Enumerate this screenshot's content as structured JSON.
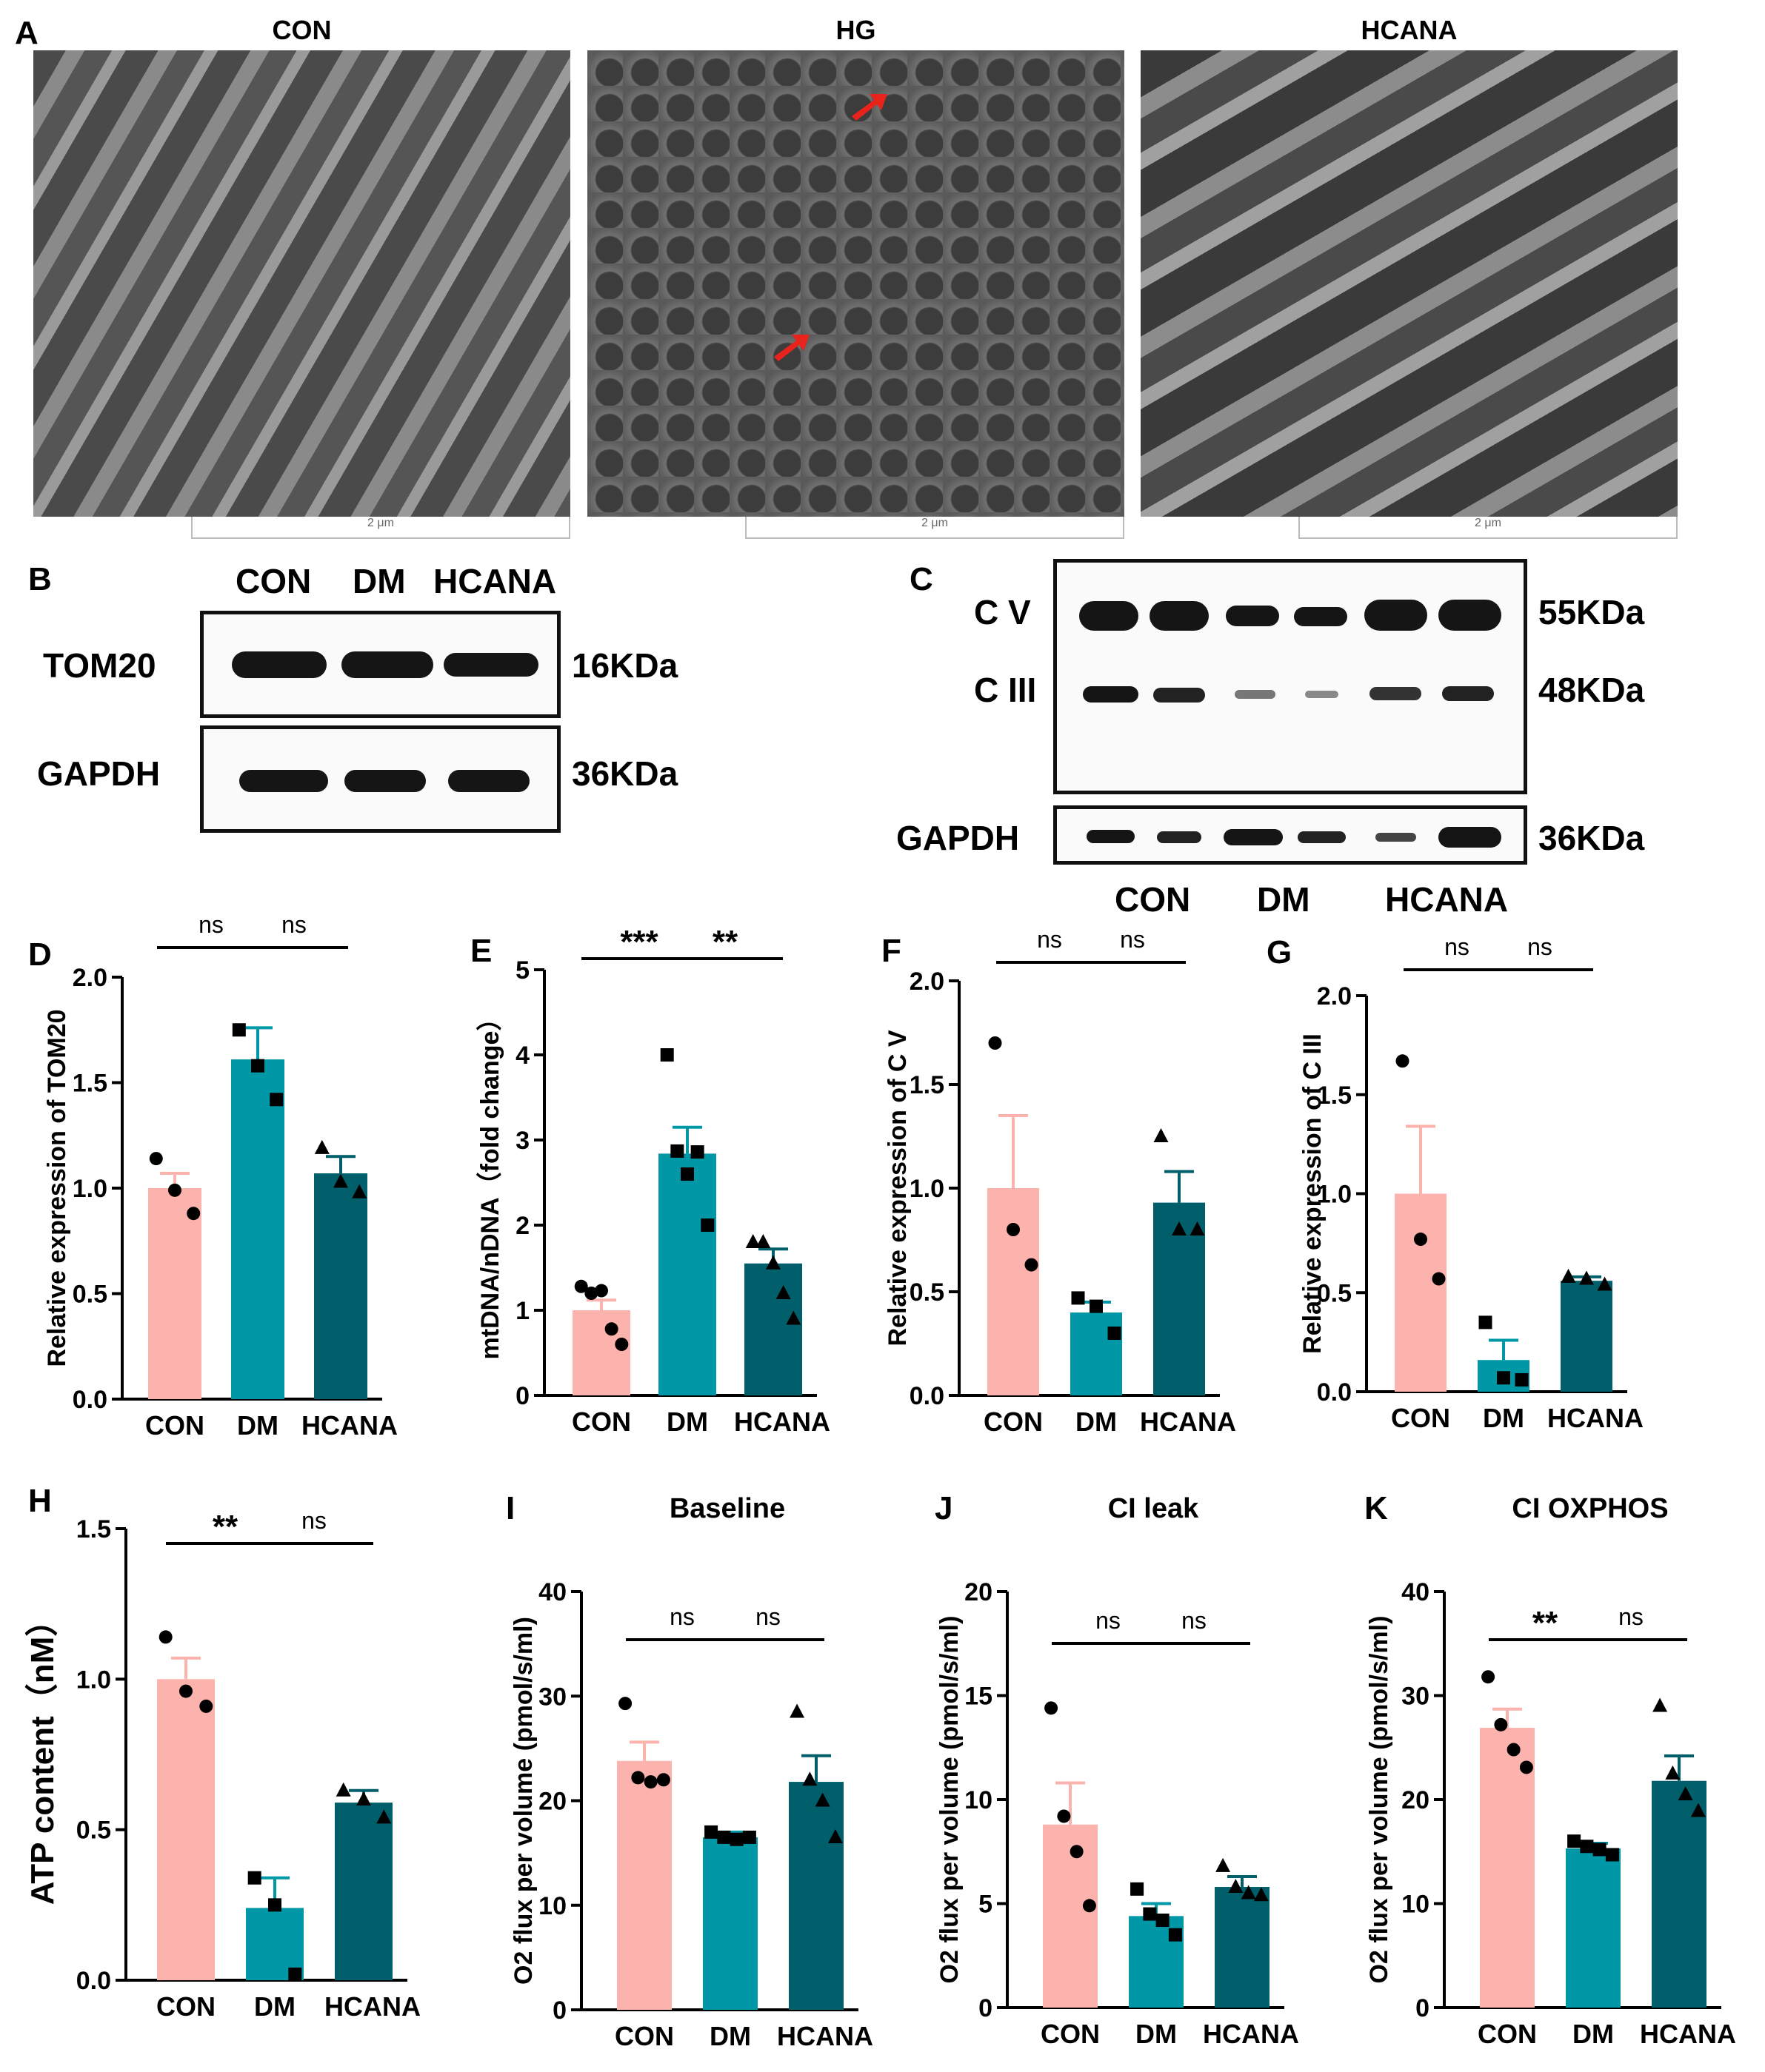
{
  "panel_a": {
    "letter": "A",
    "titles": [
      "CON",
      "HG",
      "HCANA"
    ],
    "scalebar_label": "2 μm"
  },
  "panel_b": {
    "letter": "B",
    "columns": [
      "CON",
      "DM",
      "HCANA"
    ],
    "rows": [
      {
        "label": "TOM20",
        "size": "16KDa"
      },
      {
        "label": "GAPDH",
        "size": "36KDa"
      }
    ]
  },
  "panel_c": {
    "letter": "C",
    "rows": [
      {
        "label": "C V",
        "size": "55KDa"
      },
      {
        "label": "C III",
        "size": "48KDa"
      },
      {
        "label": "GAPDH",
        "size": "36KDa"
      }
    ],
    "groups": [
      "CON",
      "DM",
      "HCANA"
    ]
  },
  "colors": {
    "CON": "#fdb3ad",
    "DM": "#0097a7",
    "HCANA": "#005f6b"
  },
  "chart_data": [
    {
      "id": "D",
      "type": "bar",
      "ylabel": "Relative expression of TOM20",
      "categories": [
        "CON",
        "DM",
        "HCANA"
      ],
      "values": [
        1.0,
        1.61,
        1.07
      ],
      "errors": [
        0.07,
        0.15,
        0.08
      ],
      "points": [
        [
          1.14,
          0.99,
          0.88
        ],
        [
          1.75,
          1.58,
          1.42
        ],
        [
          1.19,
          1.03,
          0.98
        ]
      ],
      "ylim": [
        0,
        2.0
      ],
      "yticks": [
        0.0,
        0.5,
        1.0,
        1.5,
        2.0
      ],
      "tick_decimals": 1,
      "significance": [
        {
          "from": 0,
          "to": 1,
          "label": "ns"
        },
        {
          "from": 1,
          "to": 2,
          "label": "ns"
        }
      ]
    },
    {
      "id": "E",
      "type": "bar",
      "ylabel": "mtDNA/nDNA（fold change）",
      "categories": [
        "CON",
        "DM",
        "HCANA"
      ],
      "values": [
        1.0,
        2.84,
        1.55
      ],
      "errors": [
        0.12,
        0.31,
        0.17
      ],
      "points": [
        [
          1.28,
          1.2,
          1.23,
          0.78,
          0.6
        ],
        [
          4.0,
          2.87,
          2.6,
          2.86,
          2.0
        ],
        [
          1.8,
          1.8,
          1.55,
          1.2,
          0.9
        ]
      ],
      "ylim": [
        0,
        5
      ],
      "yticks": [
        0,
        1,
        2,
        3,
        4,
        5
      ],
      "tick_decimals": 0,
      "significance": [
        {
          "from": 0,
          "to": 1,
          "label": "***"
        },
        {
          "from": 1,
          "to": 2,
          "label": "**"
        }
      ]
    },
    {
      "id": "F",
      "type": "bar",
      "ylabel": "Relative expression of C V",
      "categories": [
        "CON",
        "DM",
        "HCANA"
      ],
      "values": [
        1.0,
        0.4,
        0.93
      ],
      "errors": [
        0.35,
        0.05,
        0.15
      ],
      "points": [
        [
          1.7,
          0.8,
          0.63
        ],
        [
          0.47,
          0.43,
          0.3
        ],
        [
          1.25,
          0.8,
          0.8
        ]
      ],
      "ylim": [
        0,
        2.0
      ],
      "yticks": [
        0.0,
        0.5,
        1.0,
        1.5,
        2.0
      ],
      "tick_decimals": 1,
      "significance": [
        {
          "from": 0,
          "to": 1,
          "label": "ns"
        },
        {
          "from": 1,
          "to": 2,
          "label": "ns"
        }
      ]
    },
    {
      "id": "G",
      "type": "bar",
      "ylabel": "Relative expression of C III",
      "categories": [
        "CON",
        "DM",
        "HCANA"
      ],
      "values": [
        1.0,
        0.16,
        0.56
      ],
      "errors": [
        0.34,
        0.1,
        0.02
      ],
      "points": [
        [
          1.67,
          0.77,
          0.57
        ],
        [
          0.35,
          0.07,
          0.06
        ],
        [
          0.58,
          0.57,
          0.54
        ]
      ],
      "ylim": [
        0,
        2.0
      ],
      "yticks": [
        0.0,
        0.5,
        1.0,
        1.5,
        2.0
      ],
      "tick_decimals": 1,
      "significance": [
        {
          "from": 0,
          "to": 1,
          "label": "ns"
        },
        {
          "from": 1,
          "to": 2,
          "label": "ns"
        }
      ]
    },
    {
      "id": "H",
      "type": "bar",
      "ylabel": "ATP content（nM）",
      "categories": [
        "CON",
        "DM",
        "HCANA"
      ],
      "values": [
        1.0,
        0.24,
        0.59
      ],
      "errors": [
        0.07,
        0.1,
        0.04
      ],
      "points": [
        [
          1.14,
          0.96,
          0.91
        ],
        [
          0.34,
          0.25,
          0.02
        ],
        [
          0.63,
          0.6,
          0.54
        ]
      ],
      "ylim": [
        0,
        1.5
      ],
      "yticks": [
        0.0,
        0.5,
        1.0,
        1.5
      ],
      "tick_decimals": 1,
      "significance": [
        {
          "from": 0,
          "to": 1,
          "label": "**"
        },
        {
          "from": 1,
          "to": 2,
          "label": "ns"
        }
      ]
    },
    {
      "id": "I",
      "type": "bar",
      "title": "Baseline",
      "ylabel": "O2 flux per volume (pmol/s/ml)",
      "categories": [
        "CON",
        "DM",
        "HCANA"
      ],
      "values": [
        23.8,
        16.5,
        21.8
      ],
      "errors": [
        1.8,
        0.5,
        2.5
      ],
      "points": [
        [
          29.3,
          22.2,
          21.8,
          22.0
        ],
        [
          17.0,
          16.5,
          16.3,
          16.5
        ],
        [
          28.5,
          22.0,
          20.0,
          16.5
        ]
      ],
      "ylim": [
        0,
        40
      ],
      "yticks": [
        0,
        10,
        20,
        30,
        40
      ],
      "tick_decimals": 0,
      "significance": [
        {
          "from": 0,
          "to": 1,
          "label": "ns"
        },
        {
          "from": 1,
          "to": 2,
          "label": "ns"
        }
      ]
    },
    {
      "id": "J",
      "type": "bar",
      "title": "CI leak",
      "ylabel": "O2 flux per volume (pmol/s/ml)",
      "categories": [
        "CON",
        "DM",
        "HCANA"
      ],
      "values": [
        8.8,
        4.4,
        5.8
      ],
      "errors": [
        2.0,
        0.6,
        0.5
      ],
      "points": [
        [
          14.4,
          9.2,
          7.5,
          4.9
        ],
        [
          5.7,
          4.5,
          4.2,
          3.5
        ],
        [
          6.8,
          5.8,
          5.5,
          5.4
        ]
      ],
      "ylim": [
        0,
        20
      ],
      "yticks": [
        0,
        5,
        10,
        15,
        20
      ],
      "tick_decimals": 0,
      "significance": [
        {
          "from": 0,
          "to": 1,
          "label": "ns"
        },
        {
          "from": 1,
          "to": 2,
          "label": "ns"
        }
      ]
    },
    {
      "id": "K",
      "type": "bar",
      "title": "CI OXPHOS",
      "ylabel": "O2 flux per volume (pmol/s/ml)",
      "categories": [
        "CON",
        "DM",
        "HCANA"
      ],
      "values": [
        26.9,
        15.3,
        21.8
      ],
      "errors": [
        1.8,
        0.5,
        2.4
      ],
      "points": [
        [
          31.8,
          27.2,
          24.8,
          23.1
        ],
        [
          16.0,
          15.5,
          15.2,
          14.7
        ],
        [
          29.0,
          22.5,
          20.5,
          18.9
        ]
      ],
      "ylim": [
        0,
        40
      ],
      "yticks": [
        0,
        10,
        20,
        30,
        40
      ],
      "tick_decimals": 0,
      "significance": [
        {
          "from": 0,
          "to": 1,
          "label": "**"
        },
        {
          "from": 1,
          "to": 2,
          "label": "ns"
        }
      ]
    }
  ]
}
